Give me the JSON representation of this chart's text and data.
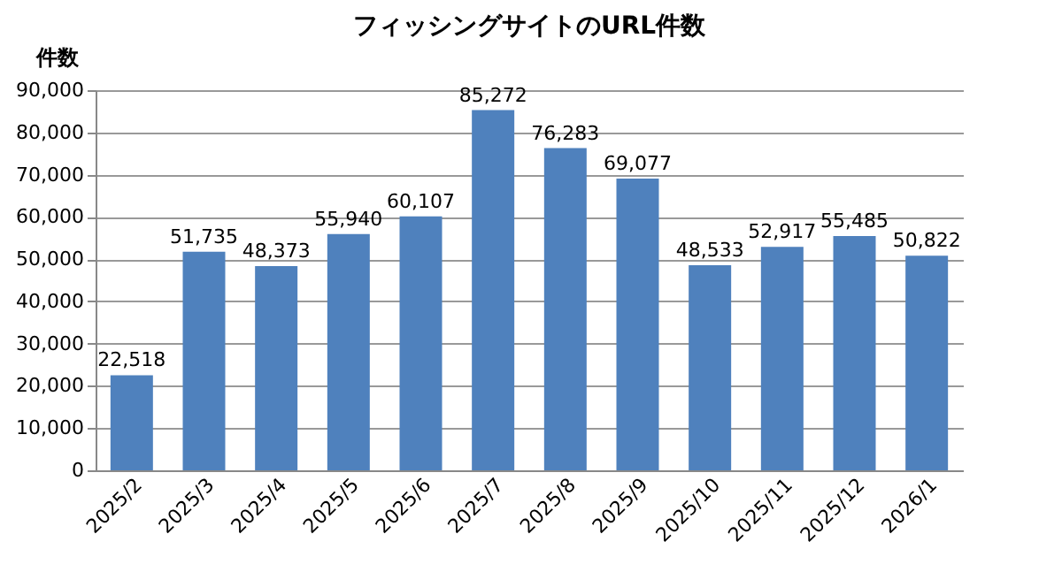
{
  "chart_data": {
    "type": "bar",
    "title": "フィッシングサイトのURL件数",
    "ylabel": "件数",
    "categories": [
      "2025/2",
      "2025/3",
      "2025/4",
      "2025/5",
      "2025/6",
      "2025/7",
      "2025/8",
      "2025/9",
      "2025/10",
      "2025/11",
      "2025/12",
      "2026/1"
    ],
    "values": [
      22518,
      51735,
      48373,
      55940,
      60107,
      85272,
      76283,
      69077,
      48533,
      52917,
      55485,
      50822
    ],
    "value_labels": [
      "22,518",
      "51,735",
      "48,373",
      "55,940",
      "60,107",
      "85,272",
      "76,283",
      "69,077",
      "48,533",
      "52,917",
      "55,485",
      "50,822"
    ],
    "color": "#4f81bd",
    "ylim": [
      0,
      90000
    ],
    "yticks": [
      0,
      {
        "value": 10000,
        "label": "10,000"
      },
      {
        "value": 20000,
        "label": "20,000"
      },
      {
        "value": 30000,
        "label": "30,000"
      },
      {
        "value": 40000,
        "label": "40,000"
      },
      {
        "value": 50000,
        "label": "50,000"
      },
      {
        "value": 60000,
        "label": "60,000"
      },
      {
        "value": 70000,
        "label": "70,000"
      },
      {
        "value": 80000,
        "label": "80,000"
      },
      {
        "value": 90000,
        "label": "90,000"
      }
    ],
    "grid": "y"
  }
}
